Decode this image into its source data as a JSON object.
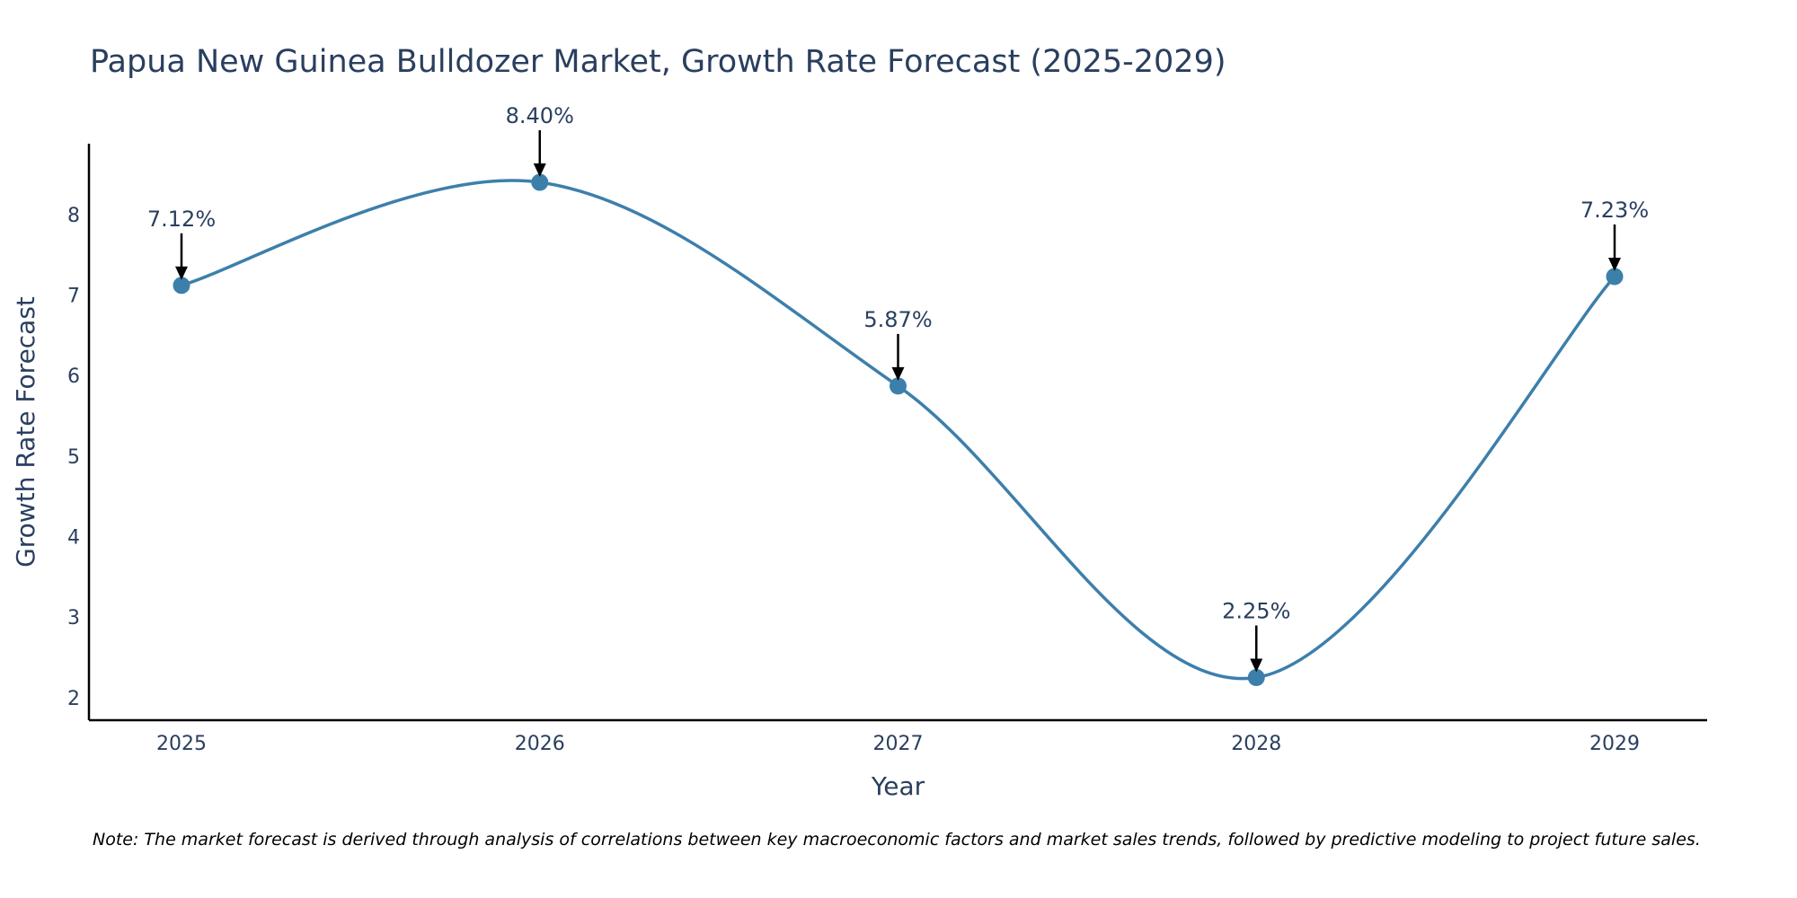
{
  "chart_data": {
    "type": "line",
    "title": "Papua New Guinea Bulldozer Market, Growth Rate Forecast (2025-2029)",
    "xlabel": "Year",
    "ylabel": "Growth Rate Forecast",
    "categories": [
      "2025",
      "2026",
      "2027",
      "2028",
      "2029"
    ],
    "series": [
      {
        "name": "Growth Rate Forecast",
        "values": [
          7.12,
          8.4,
          5.87,
          2.25,
          7.23
        ],
        "labels": [
          "7.12%",
          "8.40%",
          "5.87%",
          "2.25%",
          "7.23%"
        ],
        "color": "#3d7fab"
      }
    ],
    "ylim": [
      1.72,
      8.88
    ],
    "yticks": [
      2,
      3,
      4,
      5,
      6,
      7,
      8
    ],
    "grid": false,
    "line_shape": "spline",
    "note": "Note: The market forecast is derived through analysis of correlations between key macroeconomic factors and market sales trends, followed by predictive modeling to project future sales."
  }
}
